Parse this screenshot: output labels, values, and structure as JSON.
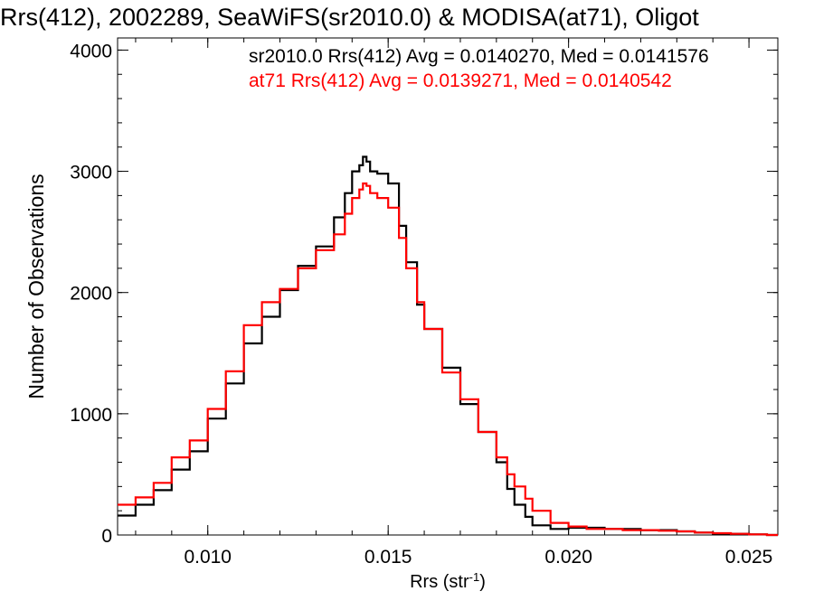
{
  "chart_data": {
    "type": "line",
    "title": "Rrs(412), 2002289, SeaWiFS(sr2010.0) & MODISA(at71), Oligot",
    "xlabel": "Rrs (str",
    "xlabel_sup": "-1",
    "xlabel_close": ")",
    "ylabel": "Number of Observations",
    "xlim": [
      0.0075,
      0.0258
    ],
    "ylim": [
      0,
      4100
    ],
    "xticks": [
      0.01,
      0.015,
      0.02,
      0.025
    ],
    "xtick_labels": [
      "0.010",
      "0.015",
      "0.020",
      "0.025"
    ],
    "yticks": [
      0,
      1000,
      2000,
      3000,
      4000
    ],
    "ytick_labels": [
      "0",
      "1000",
      "2000",
      "3000",
      "4000"
    ],
    "grid": false,
    "annotations": [
      {
        "text": "sr2010.0 Rrs(412) Avg = 0.0140270, Med = 0.0141576",
        "color": "#000000"
      },
      {
        "text": "at71 Rrs(412) Avg = 0.0139271, Med = 0.0140542",
        "color": "#ff0000"
      }
    ],
    "series": [
      {
        "name": "sr2010.0",
        "color": "#000000",
        "style": "step",
        "x": [
          0.0075,
          0.008,
          0.0085,
          0.009,
          0.0095,
          0.01,
          0.0105,
          0.011,
          0.0115,
          0.012,
          0.0125,
          0.013,
          0.0135,
          0.0138,
          0.014,
          0.0142,
          0.0143,
          0.0144,
          0.0145,
          0.0147,
          0.015,
          0.0153,
          0.0155,
          0.0158,
          0.016,
          0.0165,
          0.017,
          0.0175,
          0.018,
          0.0183,
          0.0185,
          0.0188,
          0.019,
          0.0195,
          0.02,
          0.0205,
          0.021,
          0.0215,
          0.022,
          0.0225,
          0.023,
          0.0235,
          0.024,
          0.0245,
          0.025,
          0.0255,
          0.0258
        ],
        "y": [
          160,
          250,
          370,
          540,
          690,
          960,
          1250,
          1580,
          1800,
          2020,
          2220,
          2380,
          2620,
          2820,
          3000,
          3050,
          3120,
          3080,
          3000,
          2980,
          2900,
          2550,
          2250,
          1900,
          1700,
          1380,
          1080,
          850,
          600,
          380,
          250,
          150,
          80,
          50,
          60,
          60,
          50,
          50,
          40,
          40,
          30,
          20,
          10,
          10,
          5,
          0,
          0
        ]
      },
      {
        "name": "at71",
        "color": "#ff0000",
        "style": "step",
        "x": [
          0.0075,
          0.008,
          0.0085,
          0.009,
          0.0095,
          0.01,
          0.0105,
          0.011,
          0.0115,
          0.012,
          0.0125,
          0.013,
          0.0135,
          0.0138,
          0.014,
          0.0142,
          0.0143,
          0.0144,
          0.0145,
          0.0147,
          0.015,
          0.0153,
          0.0155,
          0.0158,
          0.016,
          0.0165,
          0.017,
          0.0175,
          0.018,
          0.0183,
          0.0185,
          0.0188,
          0.019,
          0.0195,
          0.02,
          0.0205,
          0.021,
          0.0215,
          0.022,
          0.0225,
          0.023,
          0.0235,
          0.024,
          0.0245,
          0.025,
          0.0255,
          0.0258
        ],
        "y": [
          250,
          310,
          430,
          640,
          780,
          1040,
          1350,
          1730,
          1920,
          2030,
          2200,
          2350,
          2480,
          2650,
          2780,
          2850,
          2900,
          2880,
          2820,
          2780,
          2700,
          2450,
          2200,
          1920,
          1700,
          1340,
          1120,
          850,
          640,
          500,
          400,
          300,
          200,
          100,
          70,
          50,
          50,
          40,
          40,
          35,
          30,
          20,
          15,
          10,
          5,
          0,
          0
        ]
      }
    ]
  }
}
